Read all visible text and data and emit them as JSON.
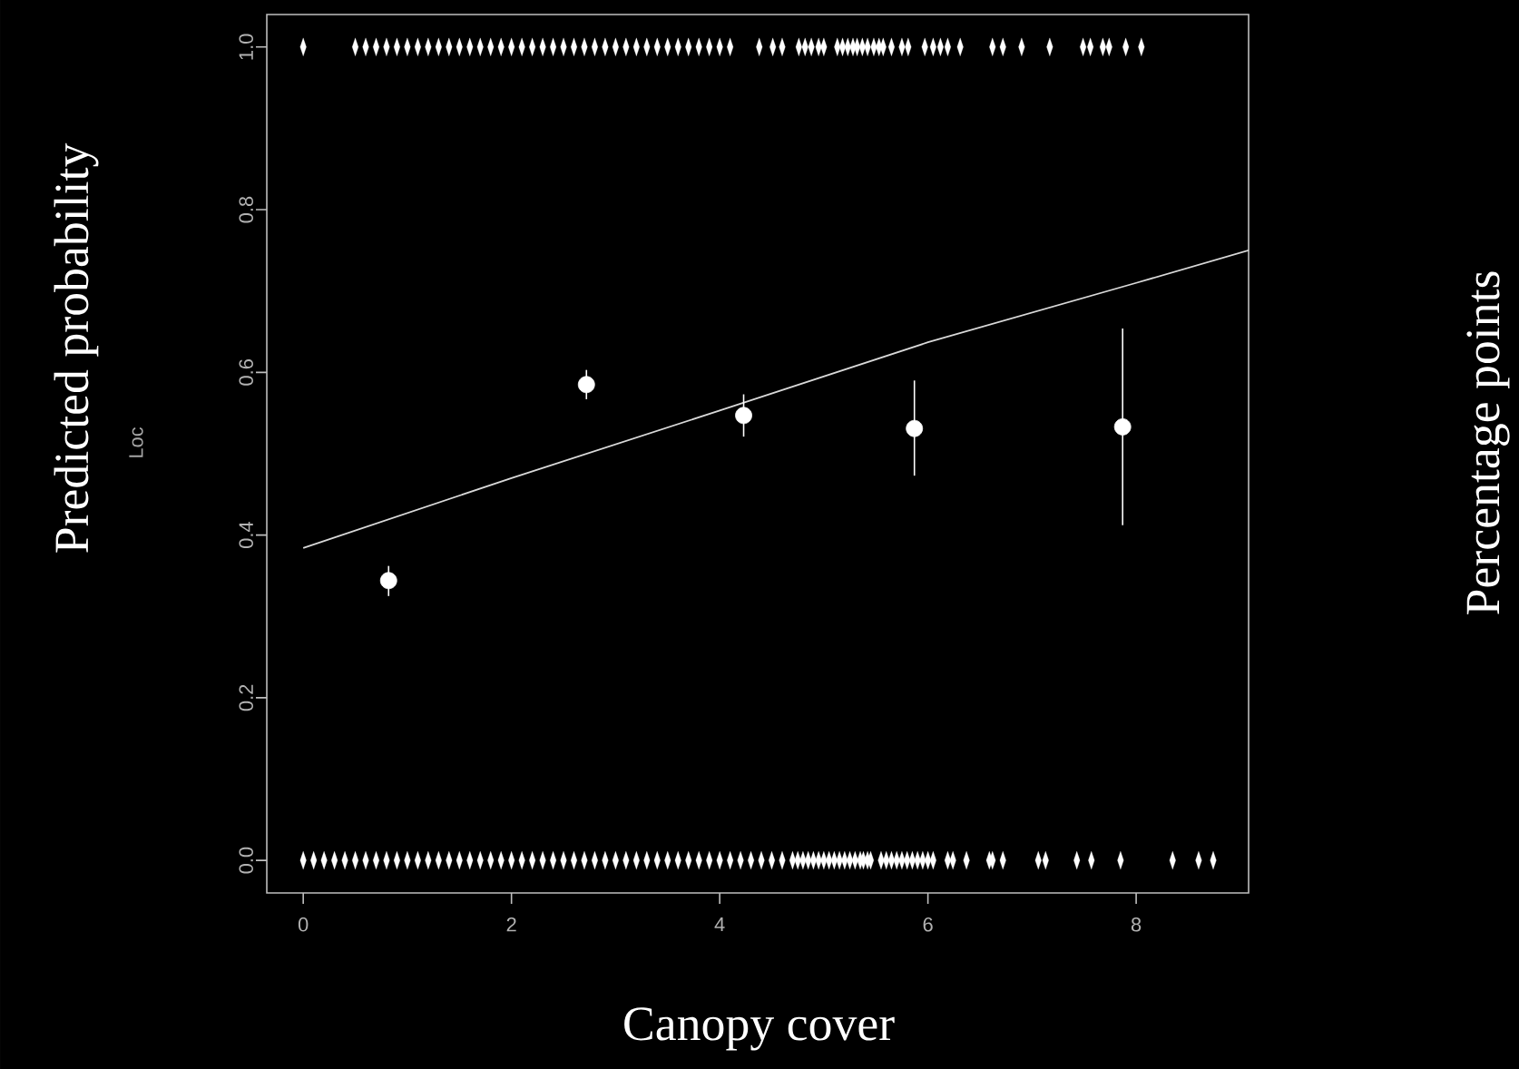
{
  "chart_data": {
    "type": "scatter",
    "xlabel": "Canopy cover",
    "ylabel": "Predicted probability",
    "y2label": "Percentage points",
    "annotations": [
      "Loc"
    ],
    "xlim": [
      -0.35,
      9.08
    ],
    "ylim": [
      -0.04,
      1.04
    ],
    "xticks": [
      0,
      2,
      4,
      6,
      8
    ],
    "yticks": [
      {
        "value": 0,
        "label": "0.0"
      },
      {
        "value": 0.2,
        "label": "0.2"
      },
      {
        "value": 0.4,
        "label": "0.4"
      },
      {
        "value": 0.6,
        "label": "0.6"
      },
      {
        "value": 0.8,
        "label": "0.8"
      },
      {
        "value": 1,
        "label": "1.0"
      }
    ],
    "series": [
      {
        "type": "line",
        "color": "#d9d9d9",
        "x": [
          0,
          2,
          4,
          6,
          8,
          9.08
        ],
        "values": [
          0.384,
          0.47,
          0.553,
          0.637,
          0.71,
          0.75
        ]
      },
      {
        "type": "scatter",
        "marker": "circle",
        "color": "#ffffff",
        "x": [
          0.82,
          2.72,
          4.23,
          5.87,
          7.87
        ],
        "values": [
          0.344,
          0.585,
          0.547,
          0.531,
          0.533
        ],
        "errors": [
          [
            0.325,
            0.362
          ],
          [
            0.567,
            0.603
          ],
          [
            0.521,
            0.573
          ],
          [
            0.473,
            0.59
          ],
          [
            0.412,
            0.654
          ]
        ]
      },
      {
        "type": "scatter",
        "marker": "diamond",
        "color": "#ffffff",
        "x": [
          0.0,
          0.5,
          0.6,
          0.7,
          0.8,
          0.9,
          1.0,
          1.1,
          1.2,
          1.3,
          1.4,
          1.5,
          1.6,
          1.7,
          1.8,
          1.9,
          2.0,
          2.1,
          2.2,
          2.3,
          2.4,
          2.5,
          2.6,
          2.7,
          2.8,
          2.9,
          3.0,
          3.1,
          3.2,
          3.3,
          3.4,
          3.5,
          3.6,
          3.7,
          3.8,
          3.9,
          4.0,
          4.1,
          4.38,
          4.51,
          4.6,
          4.76,
          4.82,
          4.88,
          4.95,
          5.0,
          5.13,
          5.18,
          5.23,
          5.28,
          5.32,
          5.37,
          5.42,
          5.48,
          5.53,
          5.57,
          5.65,
          5.75,
          5.81,
          5.97,
          6.05,
          6.12,
          6.19,
          6.31,
          6.62,
          6.72,
          6.9,
          7.17,
          7.49,
          7.56,
          7.68,
          7.74,
          7.9,
          8.05
        ],
        "values": [
          1,
          1,
          1,
          1,
          1,
          1,
          1,
          1,
          1,
          1,
          1,
          1,
          1,
          1,
          1,
          1,
          1,
          1,
          1,
          1,
          1,
          1,
          1,
          1,
          1,
          1,
          1,
          1,
          1,
          1,
          1,
          1,
          1,
          1,
          1,
          1,
          1,
          1,
          1,
          1,
          1,
          1,
          1,
          1,
          1,
          1,
          1,
          1,
          1,
          1,
          1,
          1,
          1,
          1,
          1,
          1,
          1,
          1,
          1,
          1,
          1,
          1,
          1,
          1,
          1,
          1,
          1,
          1,
          1,
          1,
          1,
          1,
          1,
          1
        ]
      },
      {
        "type": "scatter",
        "marker": "diamond",
        "color": "#ffffff",
        "x": [
          0.0,
          0.1,
          0.2,
          0.3,
          0.4,
          0.5,
          0.6,
          0.7,
          0.8,
          0.9,
          1.0,
          1.1,
          1.2,
          1.3,
          1.4,
          1.5,
          1.6,
          1.7,
          1.8,
          1.9,
          2.0,
          2.1,
          2.2,
          2.3,
          2.4,
          2.5,
          2.6,
          2.7,
          2.8,
          2.9,
          3.0,
          3.1,
          3.2,
          3.3,
          3.4,
          3.5,
          3.6,
          3.7,
          3.8,
          3.9,
          4.0,
          4.1,
          4.2,
          4.3,
          4.4,
          4.5,
          4.6,
          4.7,
          4.75,
          4.8,
          4.85,
          4.9,
          4.95,
          5.0,
          5.05,
          5.1,
          5.15,
          5.2,
          5.25,
          5.3,
          5.35,
          5.38,
          5.42,
          5.45,
          5.55,
          5.6,
          5.65,
          5.7,
          5.75,
          5.8,
          5.85,
          5.9,
          5.95,
          6.0,
          6.05,
          6.19,
          6.24,
          6.37,
          6.59,
          6.62,
          6.72,
          7.06,
          7.13,
          7.43,
          7.57,
          7.85,
          8.35,
          8.6,
          8.74
        ],
        "values": [
          0,
          0,
          0,
          0,
          0,
          0,
          0,
          0,
          0,
          0,
          0,
          0,
          0,
          0,
          0,
          0,
          0,
          0,
          0,
          0,
          0,
          0,
          0,
          0,
          0,
          0,
          0,
          0,
          0,
          0,
          0,
          0,
          0,
          0,
          0,
          0,
          0,
          0,
          0,
          0,
          0,
          0,
          0,
          0,
          0,
          0,
          0,
          0,
          0,
          0,
          0,
          0,
          0,
          0,
          0,
          0,
          0,
          0,
          0,
          0,
          0,
          0,
          0,
          0,
          0,
          0,
          0,
          0,
          0,
          0,
          0,
          0,
          0,
          0,
          0,
          0,
          0,
          0,
          0,
          0,
          0,
          0,
          0,
          0,
          0,
          0,
          0,
          0,
          0
        ]
      }
    ]
  }
}
